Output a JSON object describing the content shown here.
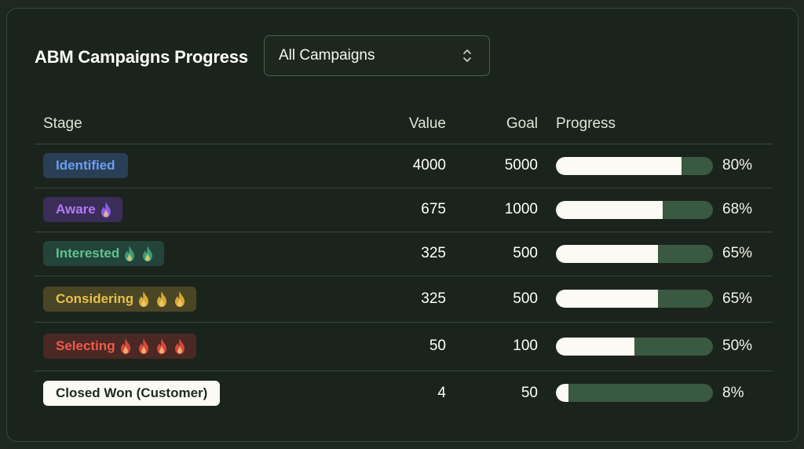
{
  "header": {
    "title": "ABM Campaigns Progress",
    "filter_value": "All Campaigns"
  },
  "table": {
    "columns": [
      "Stage",
      "Value",
      "Goal",
      "Progress"
    ],
    "rows": [
      {
        "stage": "Identified",
        "value": "4000",
        "goal": "5000",
        "progress": 0.8,
        "progress_label": "80%",
        "flames": 0,
        "badge_bg": "#2a3f55",
        "badge_fg": "#6c9df0",
        "flame_color": "#7a57d8"
      },
      {
        "stage": "Aware",
        "value": "675",
        "goal": "1000",
        "progress": 0.68,
        "progress_label": "68%",
        "flames": 1,
        "badge_bg": "#3a2d58",
        "badge_fg": "#b07af2",
        "flame_color": "#8b5ce6"
      },
      {
        "stage": "Interested",
        "value": "325",
        "goal": "500",
        "progress": 0.65,
        "progress_label": "65%",
        "flames": 2,
        "badge_bg": "#23443a",
        "badge_fg": "#5fc38c",
        "flame_color": "#3e9a73"
      },
      {
        "stage": "Considering",
        "value": "325",
        "goal": "500",
        "progress": 0.65,
        "progress_label": "65%",
        "flames": 3,
        "badge_bg": "#4a4524",
        "badge_fg": "#e6c04b",
        "flame_color": "#d8a930"
      },
      {
        "stage": "Selecting",
        "value": "50",
        "goal": "100",
        "progress": 0.5,
        "progress_label": "50%",
        "flames": 4,
        "badge_bg": "#4a2823",
        "badge_fg": "#ef5a4d",
        "flame_color": "#d8463c"
      },
      {
        "stage": "Closed Won (Customer)",
        "value": "4",
        "goal": "50",
        "progress": 0.08,
        "progress_label": "8%",
        "flames": 0,
        "badge_bg": "#fbfaf5",
        "badge_fg": "#1d2b1f",
        "flame_color": "#000000"
      }
    ]
  }
}
